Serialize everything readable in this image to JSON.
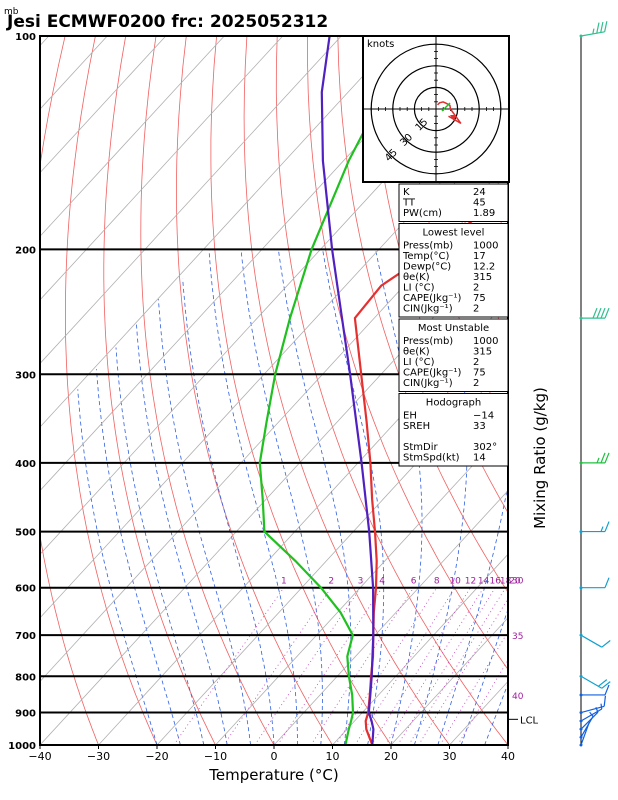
{
  "chart_data": {
    "type": "line",
    "title": "Jesi ECMWF0200 frc: 2025052312",
    "pressure_unit_label": "mb",
    "xlabel": "Temperature (°C)",
    "right_axis_label": "Mixing Ratio (g/kg)",
    "x_range": [
      -40,
      40
    ],
    "y_range_hPa": [
      1000,
      100
    ],
    "y_scale": "log",
    "x_ticks": [
      "−40",
      "−30",
      "−20",
      "−10",
      "0",
      "10",
      "20",
      "30",
      "40"
    ],
    "x_tick_values": [
      -40,
      -30,
      -20,
      -10,
      0,
      10,
      20,
      30,
      40
    ],
    "y_ticks": [
      "100",
      "200",
      "300",
      "400",
      "500",
      "600",
      "700",
      "800",
      "900",
      "1000"
    ],
    "y_tick_values": [
      100,
      200,
      300,
      400,
      500,
      600,
      700,
      800,
      900,
      1000
    ],
    "mixing_ratio_labels": [
      "1",
      "2",
      "3",
      "4",
      "6",
      "8",
      "10",
      "12",
      "14",
      "16",
      "18",
      "20",
      "25",
      "30"
    ],
    "mixing_ratio_values": [
      1,
      2,
      3,
      4,
      6,
      8,
      10,
      12,
      14,
      16,
      18,
      20,
      25,
      30
    ],
    "theta_e_labels": [
      "30",
      "35",
      "40"
    ],
    "lcl_label": "LCL",
    "lcl_pressure": 920,
    "series": [
      {
        "role": "temperature",
        "color": "#e53030",
        "points": [
          [
            1000,
            16.8
          ],
          [
            950,
            13.3
          ],
          [
            925,
            11.9
          ],
          [
            900,
            11
          ],
          [
            850,
            8.5
          ],
          [
            800,
            5.8
          ],
          [
            750,
            3
          ],
          [
            700,
            -0.3
          ],
          [
            650,
            -3.8
          ],
          [
            600,
            -7.3
          ],
          [
            550,
            -11.4
          ],
          [
            500,
            -16.3
          ],
          [
            450,
            -21.9
          ],
          [
            400,
            -27.9
          ],
          [
            350,
            -35
          ],
          [
            300,
            -43.4
          ],
          [
            250,
            -53.3
          ],
          [
            225,
            -53.9
          ],
          [
            200,
            -50.4
          ],
          [
            150,
            -44.6
          ],
          [
            120,
            -40.3
          ],
          [
            100,
            -36.2
          ]
        ]
      },
      {
        "role": "dewpoint",
        "color": "#20c020",
        "points": [
          [
            1000,
            12.2
          ],
          [
            950,
            10.3
          ],
          [
            925,
            9.4
          ],
          [
            900,
            8.4
          ],
          [
            850,
            5.5
          ],
          [
            800,
            2
          ],
          [
            750,
            -1.4
          ],
          [
            700,
            -3.8
          ],
          [
            650,
            -9.5
          ],
          [
            600,
            -16.7
          ],
          [
            550,
            -25.3
          ],
          [
            500,
            -35.2
          ],
          [
            450,
            -40.6
          ],
          [
            400,
            -46.8
          ],
          [
            350,
            -52.1
          ],
          [
            300,
            -58.1
          ],
          [
            250,
            -64.4
          ],
          [
            200,
            -71.5
          ],
          [
            150,
            -79.1
          ],
          [
            120,
            -83.8
          ],
          [
            100,
            -87.5
          ]
        ]
      },
      {
        "role": "parcel",
        "color": "#5020c0",
        "points": [
          [
            1000,
            16.8
          ],
          [
            950,
            14.5
          ],
          [
            925,
            12.9
          ],
          [
            900,
            11.1
          ],
          [
            850,
            8.6
          ],
          [
            800,
            5.9
          ],
          [
            700,
            -0.3
          ],
          [
            600,
            -7.8
          ],
          [
            500,
            -17.3
          ],
          [
            400,
            -29.4
          ],
          [
            300,
            -45.3
          ],
          [
            250,
            -55.5
          ],
          [
            200,
            -68
          ],
          [
            150,
            -83.5
          ],
          [
            120,
            -94.5
          ],
          [
            100,
            -102
          ]
        ]
      }
    ],
    "wind_barbs": [
      {
        "p": 1000,
        "spd": 3,
        "dir": 200
      },
      {
        "p": 975,
        "spd": 5,
        "dir": 210
      },
      {
        "p": 950,
        "spd": 7,
        "dir": 225
      },
      {
        "p": 925,
        "spd": 8,
        "dir": 240
      },
      {
        "p": 900,
        "spd": 10,
        "dir": 255
      },
      {
        "p": 850,
        "spd": 10,
        "dir": 270
      },
      {
        "p": 800,
        "spd": 20,
        "dir": 300
      },
      {
        "p": 700,
        "spd": 10,
        "dir": 300
      },
      {
        "p": 600,
        "spd": 10,
        "dir": 270
      },
      {
        "p": 500,
        "spd": 15,
        "dir": 270
      },
      {
        "p": 400,
        "spd": 25,
        "dir": 270
      },
      {
        "p": 250,
        "spd": 40,
        "dir": 270
      },
      {
        "p": 100,
        "spd": 35,
        "dir": 260
      }
    ],
    "hodograph": {
      "units": "knots",
      "ring_labels": [
        "15",
        "30",
        "45"
      ],
      "ring_values": [
        15,
        30,
        45
      ],
      "range": 50
    }
  },
  "stats": {
    "top": [
      {
        "label": "K",
        "value": "24"
      },
      {
        "label": "TT",
        "value": "45"
      },
      {
        "label": "PW(cm)",
        "value": "1.89"
      }
    ],
    "sections": [
      {
        "title": "Lowest level",
        "rows": [
          {
            "label": "Press(mb)",
            "value": "1000"
          },
          {
            "label": "Temp(°C)",
            "value": "17"
          },
          {
            "label": "Dewp(°C)",
            "value": "12.2"
          },
          {
            "label": "θe(K)",
            "value": "315"
          },
          {
            "label": "LI (°C)",
            "value": "2"
          },
          {
            "label": "CAPE(Jkg⁻¹)",
            "value": "75"
          },
          {
            "label": "CIN(Jkg⁻¹)",
            "value": "2"
          }
        ]
      },
      {
        "title": "Most Unstable",
        "rows": [
          {
            "label": "Press(mb)",
            "value": "1000"
          },
          {
            "label": "θe(K)",
            "value": "315"
          },
          {
            "label": "LI (°C)",
            "value": "2"
          },
          {
            "label": "CAPE(Jkg⁻¹)",
            "value": "75"
          },
          {
            "label": "CIN(Jkg⁻¹)",
            "value": "2"
          }
        ]
      },
      {
        "title": "Hodograph",
        "rows": [
          {
            "label": "EH",
            "value": "−14"
          },
          {
            "label": "SREH",
            "value": "33"
          },
          {
            "label": "",
            "value": ""
          },
          {
            "label": "StmDir",
            "value": "302°"
          },
          {
            "label": "StmSpd(kt)",
            "value": "14"
          }
        ]
      }
    ]
  }
}
